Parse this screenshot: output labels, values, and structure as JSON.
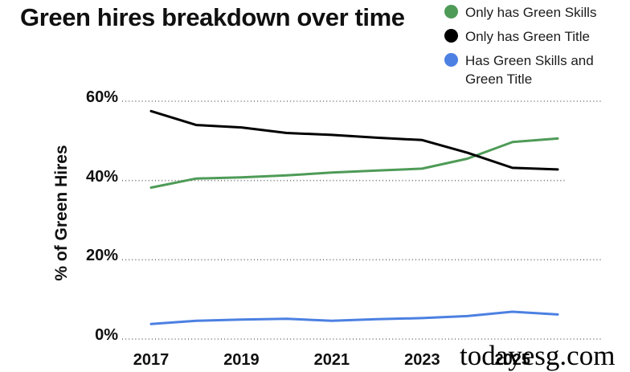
{
  "title": "Green hires breakdown over time",
  "watermark": "todayesg.com",
  "legend": {
    "items": [
      {
        "label": "Only has Green Skills",
        "color": "#4e9b57"
      },
      {
        "label": "Only has Green Title",
        "color": "#000000"
      },
      {
        "label": "Has Green Skills and Green Title",
        "color": "#4c80e2"
      }
    ]
  },
  "y_axis": {
    "title": "% of Green Hires",
    "ticks": [
      {
        "label": "60%",
        "value": 60
      },
      {
        "label": "40%",
        "value": 40
      },
      {
        "label": "20%",
        "value": 20
      },
      {
        "label": "0%",
        "value": 0
      }
    ]
  },
  "x_axis": {
    "tick_labels": [
      "2017",
      "2019",
      "2021",
      "2023",
      "2025"
    ]
  },
  "chart_data": {
    "type": "line",
    "title": "Green hires breakdown over time",
    "ylabel": "% of Green Hires",
    "x": [
      2017,
      2018,
      2019,
      2020,
      2021,
      2022,
      2023,
      2024,
      2025,
      2026
    ],
    "x_tick_labels": [
      "2017",
      "2019",
      "2021",
      "2023",
      "2025"
    ],
    "x_tick_indices": [
      0,
      2,
      4,
      6,
      8
    ],
    "ylim": [
      0,
      60
    ],
    "yticks": [
      0,
      20,
      40,
      60
    ],
    "grid": "dotted-horizontal",
    "legend_position": "top-right",
    "series": [
      {
        "name": "Only has Green Skills",
        "color": "#4e9b57",
        "values": [
          38.2,
          40.5,
          40.8,
          41.3,
          42.0,
          42.5,
          43.0,
          45.5,
          49.7,
          50.6
        ]
      },
      {
        "name": "Only has Green Title",
        "color": "#000000",
        "values": [
          57.5,
          54.0,
          53.4,
          52.0,
          51.5,
          50.8,
          50.2,
          47.0,
          43.2,
          42.8
        ]
      },
      {
        "name": "Has Green Skills and Green Title",
        "color": "#4c80e2",
        "values": [
          3.8,
          4.6,
          4.9,
          5.1,
          4.6,
          5.0,
          5.3,
          5.8,
          6.9,
          6.2
        ]
      }
    ]
  }
}
